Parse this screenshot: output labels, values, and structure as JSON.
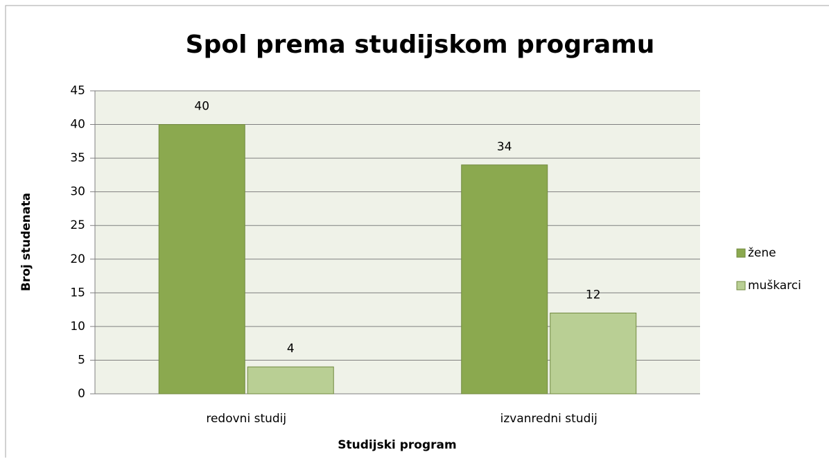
{
  "chart_data": {
    "type": "bar",
    "title": "Spol prema studijskom programu",
    "x_label": "Studijski program",
    "y_label": "Broj studenata",
    "categories": [
      "redovni studij",
      "izvanredni studij"
    ],
    "series": [
      {
        "name": "žene",
        "color": "#8ba94f",
        "values": [
          40,
          34
        ]
      },
      {
        "name": "muškarci",
        "color": "#b9cf94",
        "values": [
          4,
          12
        ]
      }
    ],
    "ylim": [
      0,
      45
    ],
    "yticks": [
      0,
      5,
      10,
      15,
      20,
      25,
      30,
      35,
      40,
      45
    ],
    "grid": true,
    "legend": "right",
    "plot_background": "#eff2e8"
  }
}
